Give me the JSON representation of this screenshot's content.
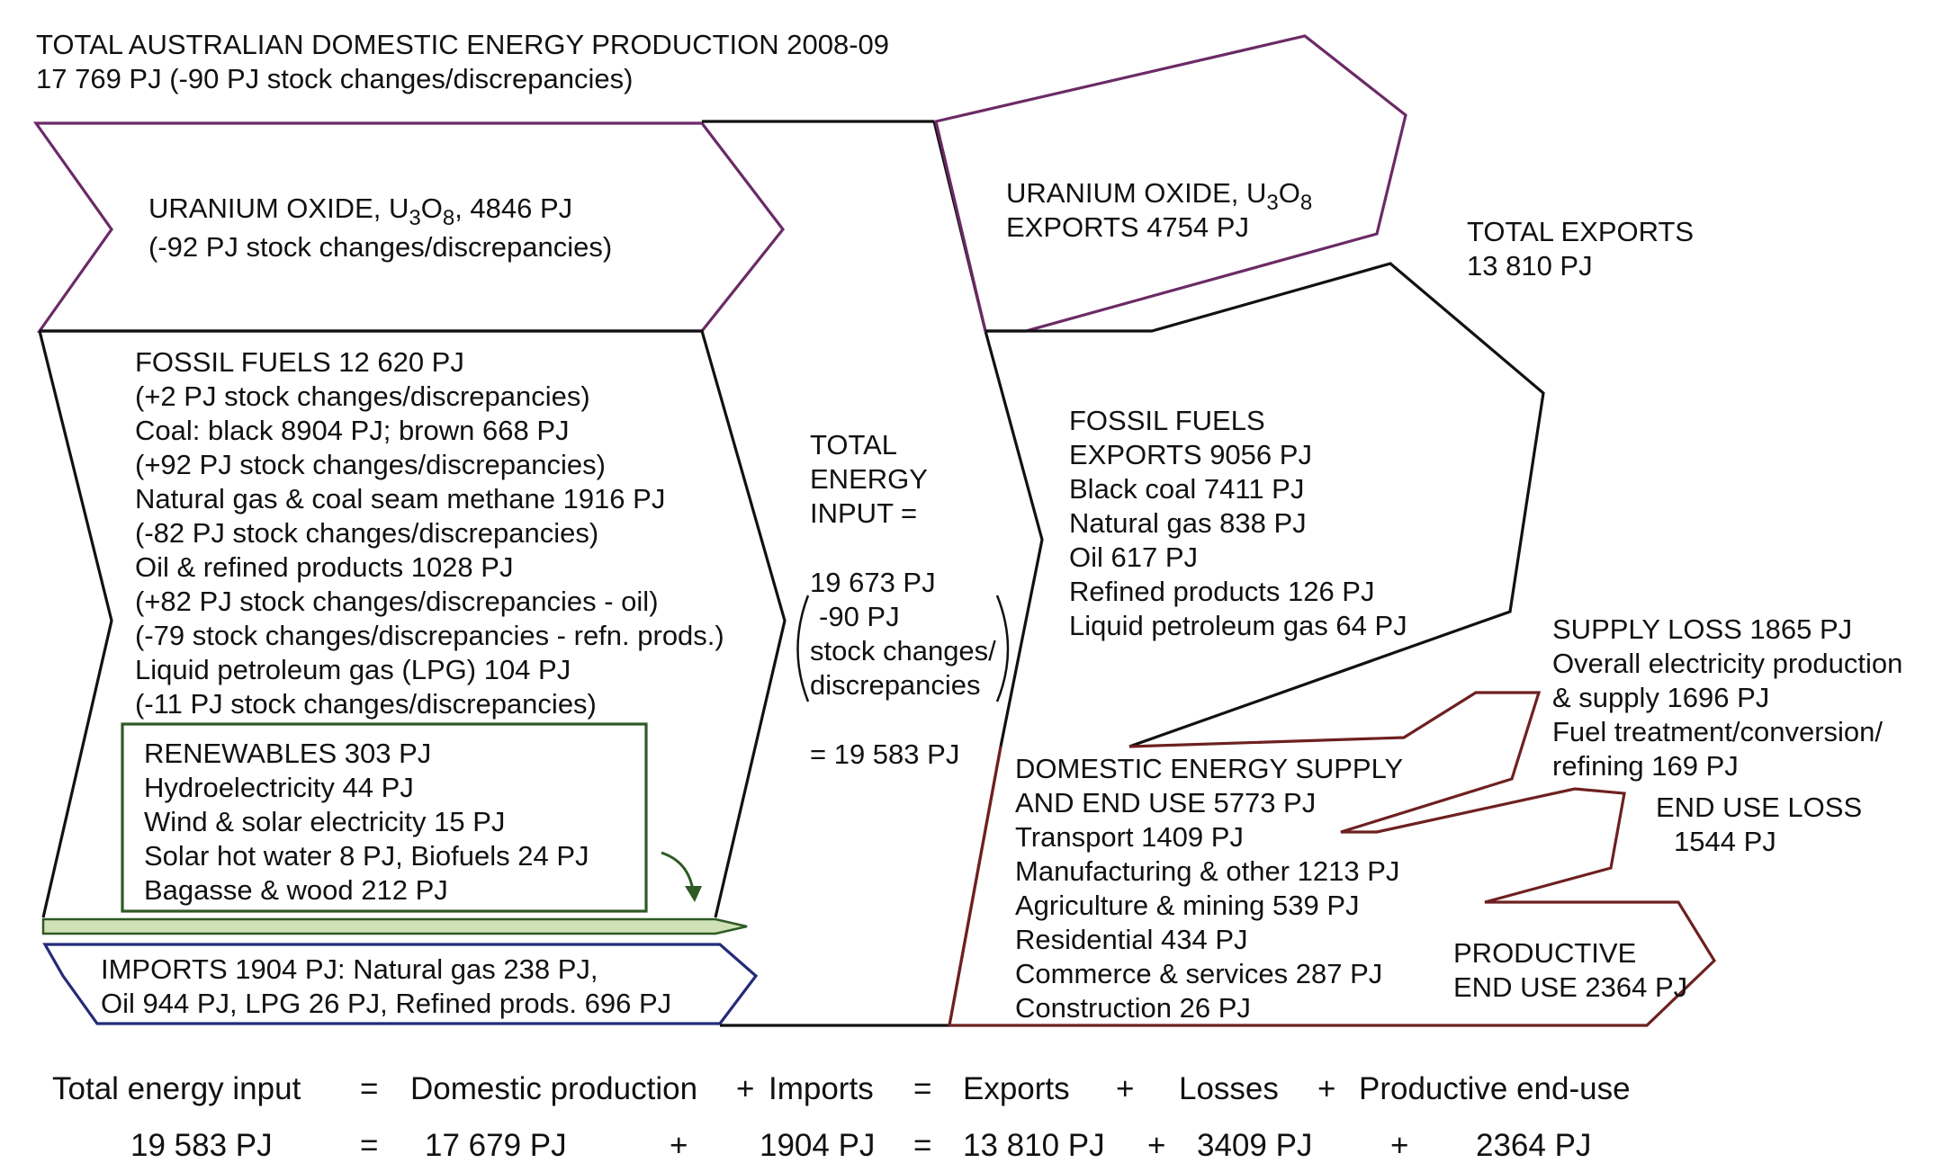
{
  "header": {
    "title": "TOTAL AUSTRALIAN DOMESTIC ENERGY PRODUCTION 2008-09",
    "subtitle": "17 769 PJ (-90  PJ stock changes/discrepancies)"
  },
  "uranium": {
    "line1_prefix": "URANIUM OXIDE, U",
    "sub1": "3",
    "mid": "O",
    "sub2": "8",
    "line1_suffix": ", 4846 PJ",
    "line2": "(-92 PJ stock changes/discrepancies)"
  },
  "fossil": {
    "lines": [
      "FOSSIL FUELS 12 620 PJ",
      "(+2 PJ stock changes/discrepancies)",
      "Coal: black 8904 PJ; brown 668 PJ",
      "(+92 PJ stock changes/discrepancies)",
      "Natural gas & coal seam methane 1916 PJ",
      "(-82 PJ stock changes/discrepancies)",
      "Oil & refined products 1028 PJ",
      "(+82 PJ stock changes/discrepancies - oil)",
      "(-79 stock changes/discrepancies - refn. prods.)",
      "Liquid petroleum gas (LPG) 104 PJ",
      "(-11 PJ stock changes/discrepancies)"
    ]
  },
  "renewables": {
    "lines": [
      "RENEWABLES 303 PJ",
      "Hydroelectricity 44 PJ",
      "Wind & solar electricity 15 PJ",
      "Solar hot water 8 PJ, Biofuels 24 PJ",
      "Bagasse & wood 212 PJ"
    ]
  },
  "imports": {
    "lines": [
      "IMPORTS 1904 PJ: Natural gas 238 PJ,",
      "Oil 944 PJ, LPG 26 PJ, Refined prods. 696 PJ"
    ]
  },
  "total_input": {
    "lines": [
      "TOTAL",
      "ENERGY",
      "INPUT ="
    ],
    "value": "19 673 PJ",
    "stock_lines": [
      "-90 PJ",
      "stock changes/",
      "discrepancies"
    ],
    "result": "= 19 583 PJ"
  },
  "uranium_exports": {
    "line1_prefix": "URANIUM OXIDE, U",
    "sub1": "3",
    "mid": "O",
    "sub2": "8",
    "line2": "EXPORTS 4754 PJ"
  },
  "total_exports": {
    "lines": [
      "TOTAL EXPORTS",
      "13 810 PJ"
    ]
  },
  "fossil_exports": {
    "lines": [
      "FOSSIL FUELS",
      "EXPORTS 9056 PJ",
      "Black coal 7411 PJ",
      "Natural gas 838 PJ",
      "Oil 617 PJ",
      "Refined products 126 PJ",
      "Liquid petroleum gas 64 PJ"
    ]
  },
  "supply_loss": {
    "lines": [
      "SUPPLY LOSS 1865 PJ",
      "Overall electricity production",
      "& supply 1696 PJ",
      "Fuel treatment/conversion/",
      "refining 169 PJ"
    ]
  },
  "end_use_loss": {
    "lines": [
      "END USE LOSS",
      "1544 PJ"
    ]
  },
  "domestic": {
    "lines": [
      "DOMESTIC ENERGY SUPPLY",
      "AND END USE 5773 PJ",
      "Transport 1409 PJ",
      "Manufacturing & other 1213 PJ",
      "Agriculture & mining 539 PJ",
      "Residential 434 PJ",
      "Commerce & services 287 PJ",
      "Construction 26 PJ"
    ]
  },
  "productive": {
    "lines": [
      "PRODUCTIVE",
      "END USE 2364 PJ"
    ]
  },
  "equation": {
    "row1": [
      "Total energy input",
      "=",
      "Domestic production",
      "+",
      "Imports",
      "=",
      "Exports",
      "+",
      "Losses",
      "+",
      "Productive end-use"
    ],
    "row2": [
      "19 583 PJ",
      "=",
      "17 679 PJ",
      "+",
      "1904 PJ",
      "=",
      "13 810 PJ",
      "+",
      "3409 PJ",
      "+",
      "2364 PJ"
    ]
  },
  "colors": {
    "uranium": "#6b2a66",
    "fossil": "#111111",
    "renewables": "#2e5a24",
    "imports": "#232b78",
    "domestic": "#6e2020"
  }
}
